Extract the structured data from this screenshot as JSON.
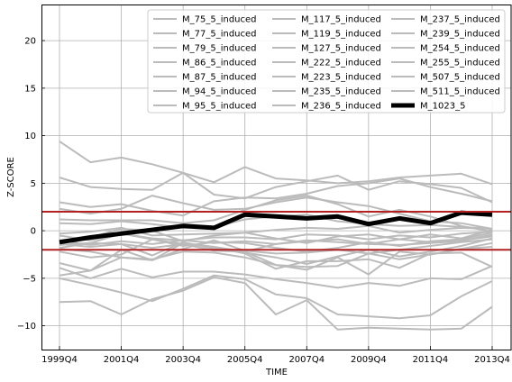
{
  "chart_data": {
    "type": "line",
    "xlabel": "TIME",
    "ylabel": "Z-SCORE",
    "categories": [
      "1999Q4",
      "2000Q4",
      "2001Q4",
      "2002Q4",
      "2003Q4",
      "2004Q4",
      "2005Q4",
      "2006Q4",
      "2007Q4",
      "2008Q4",
      "2009Q4",
      "2010Q4",
      "2011Q4",
      "2012Q4",
      "2013Q4"
    ],
    "x_tick_labels": [
      "1999Q4",
      "2001Q4",
      "2003Q4",
      "2005Q4",
      "2007Q4",
      "2009Q4",
      "2011Q4",
      "2013Q4"
    ],
    "ylim": [
      -12.5,
      23.8
    ],
    "y_ticks": [
      -10,
      -5,
      0,
      5,
      10,
      15,
      20
    ],
    "y_tick_labels": [
      "−10",
      "−5",
      "0",
      "5",
      "10",
      "15",
      "20"
    ],
    "grid": true,
    "legend_position": "top-right",
    "legend_columns": 3,
    "thresholds": [
      2,
      -2
    ],
    "threshold_color": "#b22222",
    "series_color": "#bbbbbb",
    "highlight_color": "#000000",
    "series": [
      {
        "name": "M_75_5_induced",
        "values": [
          9.4,
          7.2,
          7.7,
          7.0,
          6.1,
          5.1,
          6.7,
          5.5,
          5.3,
          5.0,
          5.2,
          5.6,
          5.8,
          6.0,
          4.9
        ]
      },
      {
        "name": "M_77_5_induced",
        "values": [
          5.6,
          4.6,
          4.4,
          4.3,
          6.1,
          3.8,
          3.4,
          4.6,
          5.2,
          5.8,
          4.3,
          5.2,
          4.9,
          4.5,
          3.0
        ]
      },
      {
        "name": "M_79_5_induced",
        "values": [
          3.0,
          2.5,
          2.8,
          2.1,
          1.6,
          3.1,
          3.5,
          3.4,
          3.9,
          4.7,
          5.0,
          5.5,
          4.6,
          3.9,
          3.1
        ]
      },
      {
        "name": "M_86_5_induced",
        "values": [
          2.3,
          1.8,
          2.3,
          3.7,
          2.9,
          2.2,
          2.3,
          3.0,
          3.5,
          3.0,
          2.6,
          1.8,
          1.0,
          0.8,
          0.2
        ]
      },
      {
        "name": "M_87_5_induced",
        "values": [
          1.2,
          1.1,
          1.1,
          1.1,
          0.8,
          1.1,
          2.2,
          3.2,
          3.7,
          2.8,
          1.5,
          2.2,
          1.5,
          0.5,
          -0.1
        ]
      },
      {
        "name": "M_94_5_induced",
        "values": [
          0.8,
          0.7,
          1.0,
          0.7,
          0.3,
          0.4,
          1.2,
          1.5,
          1.7,
          1.0,
          0.7,
          0.5,
          0.6,
          0.4,
          0.2
        ]
      },
      {
        "name": "M_95_5_induced",
        "values": [
          -0.5,
          -1.0,
          -0.3,
          -0.8,
          -1.0,
          -0.7,
          -0.7,
          -0.9,
          -0.4,
          -0.5,
          -0.9,
          -0.5,
          -0.7,
          -0.3,
          -0.1
        ]
      },
      {
        "name": "M_117_5_induced",
        "values": [
          -1.0,
          -0.7,
          0.2,
          0.0,
          -1.1,
          -0.5,
          -0.2,
          -0.8,
          -1.3,
          -0.6,
          -0.4,
          -0.9,
          -0.4,
          -0.8,
          0.1
        ]
      },
      {
        "name": "M_119_5_induced",
        "values": [
          -1.5,
          -1.3,
          -0.3,
          -0.9,
          -1.6,
          -1.2,
          -1.3,
          -1.8,
          -2.2,
          -1.8,
          -1.2,
          -1.6,
          -1.1,
          -0.9,
          -0.2
        ]
      },
      {
        "name": "M_127_5_induced",
        "values": [
          -1.8,
          -1.3,
          -1.4,
          -1.8,
          -1.4,
          -2.1,
          -2.2,
          -1.4,
          -1.1,
          -0.9,
          -1.4,
          -1.5,
          -1.3,
          -1.1,
          -0.4
        ]
      },
      {
        "name": "M_222_5_induced",
        "values": [
          -1.4,
          -1.7,
          -1.4,
          -2.6,
          -1.2,
          -1.9,
          -2.3,
          -2.8,
          -3.5,
          -2.7,
          -2.0,
          -2.7,
          -2.2,
          -1.6,
          -0.8
        ]
      },
      {
        "name": "M_223_5_induced",
        "values": [
          -2.2,
          -2.8,
          -2.5,
          -0.9,
          -1.4,
          -1.7,
          -2.2,
          -3.6,
          -3.8,
          -3.7,
          -2.4,
          -3.0,
          -2.5,
          -1.9,
          -1.3
        ]
      },
      {
        "name": "M_235_5_induced",
        "values": [
          -1.9,
          -2.2,
          -2.8,
          -3.0,
          -2.2,
          -2.3,
          -2.8,
          -3.6,
          -4.1,
          -2.8,
          -4.6,
          -2.2,
          -2.5,
          -1.9,
          -1.7
        ]
      },
      {
        "name": "M_236_5_induced",
        "values": [
          -3.9,
          -5.0,
          -4.0,
          -4.9,
          -4.3,
          -4.3,
          -4.6,
          -5.1,
          -5.5,
          -6.0,
          -5.5,
          -5.8,
          -5.0,
          -5.1,
          -3.7
        ]
      },
      {
        "name": "M_237_5_induced",
        "values": [
          -4.7,
          -4.2,
          -2.0,
          -3.1,
          -1.3,
          -1.7,
          -2.4,
          -4.0,
          -3.2,
          -3.2,
          -3.0,
          -3.9,
          -2.4,
          -2.3,
          -3.8
        ]
      },
      {
        "name": "M_239_5_induced",
        "values": [
          -5.0,
          -5.7,
          -6.5,
          -7.4,
          -6.1,
          -4.7,
          -5.1,
          -6.7,
          -7.1,
          -8.8,
          -9.0,
          -9.2,
          -8.9,
          -6.9,
          -5.3
        ]
      },
      {
        "name": "M_254_5_induced",
        "values": [
          -7.5,
          -7.4,
          -8.8,
          -7.2,
          -6.3,
          -4.9,
          -5.5,
          -8.8,
          -7.3,
          -10.4,
          -10.2,
          -10.3,
          -10.4,
          -10.3,
          -8.0
        ]
      },
      {
        "name": "M_255_5_induced",
        "values": [
          -0.3,
          -0.1,
          0.3,
          -0.5,
          -0.4,
          -0.3,
          -0.2,
          0.1,
          0.3,
          0.2,
          0.5,
          -0.2,
          0.1,
          0.3,
          0.2
        ]
      },
      {
        "name": "M_507_5_induced",
        "values": [
          -1.0,
          -1.5,
          -1.1,
          -1.4,
          -1.0,
          -1.3,
          -1.1,
          -1.4,
          -1.0,
          -1.2,
          -1.4,
          -0.9,
          -1.2,
          -1.0,
          -0.6
        ]
      },
      {
        "name": "M_511_5_induced",
        "values": [
          -3.4,
          -4.2,
          -2.8,
          -3.1,
          -1.9,
          -1.0,
          -2.1,
          -2.4,
          -2.3,
          -2.0,
          -2.4,
          -2.0,
          -1.6,
          -1.2,
          -0.9
        ]
      },
      {
        "name": "M_1023_5",
        "values": [
          -1.2,
          -0.7,
          -0.3,
          0.1,
          0.5,
          0.3,
          1.7,
          1.5,
          1.3,
          1.5,
          0.7,
          1.3,
          0.8,
          1.9,
          1.7
        ],
        "highlight": true
      }
    ]
  }
}
